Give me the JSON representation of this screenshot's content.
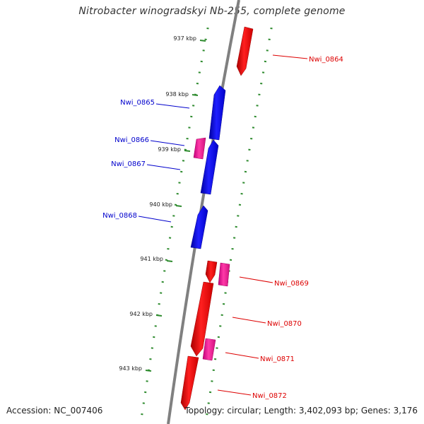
{
  "title": "Nitrobacter winogradskyi Nb-255, complete genome",
  "footer": {
    "accession": "Accession: NC_007406",
    "summary": "Topology: circular; Length: 3,402,093 bp; Genes: 3,176"
  },
  "colors": {
    "backbone": "#808080",
    "tick": "#2e8b2e",
    "forward_cds": "#ff0000",
    "reverse_cds": "#0000ff",
    "rna": "#ff1493",
    "forward_label": "#dd0000",
    "reverse_label": "#0000cc"
  },
  "scale": {
    "unit": "kbp",
    "labels": [
      {
        "kbp": 937,
        "text": "937 kbp"
      },
      {
        "kbp": 938,
        "text": "938 kbp"
      },
      {
        "kbp": 939,
        "text": "939 kbp"
      },
      {
        "kbp": 940,
        "text": "940 kbp"
      },
      {
        "kbp": 941,
        "text": "941 kbp"
      },
      {
        "kbp": 942,
        "text": "942 kbp"
      },
      {
        "kbp": 943,
        "text": "943 kbp"
      }
    ]
  },
  "genes": [
    {
      "label": "Nwi_0864",
      "strand": "forward",
      "kind": "cds"
    },
    {
      "label": "Nwi_0865",
      "strand": "reverse",
      "kind": "cds"
    },
    {
      "label": "Nwi_0866",
      "strand": "reverse",
      "kind": "rna"
    },
    {
      "label": "Nwi_0867",
      "strand": "reverse",
      "kind": "cds"
    },
    {
      "label": "Nwi_0868",
      "strand": "reverse",
      "kind": "cds"
    },
    {
      "label": "Nwi_0869",
      "strand": "forward",
      "kind": "rna"
    },
    {
      "label": "Nwi_0870",
      "strand": "forward",
      "kind": "cds"
    },
    {
      "label": "Nwi_0871",
      "strand": "forward",
      "kind": "rna"
    },
    {
      "label": "Nwi_0872",
      "strand": "forward",
      "kind": "cds"
    }
  ]
}
